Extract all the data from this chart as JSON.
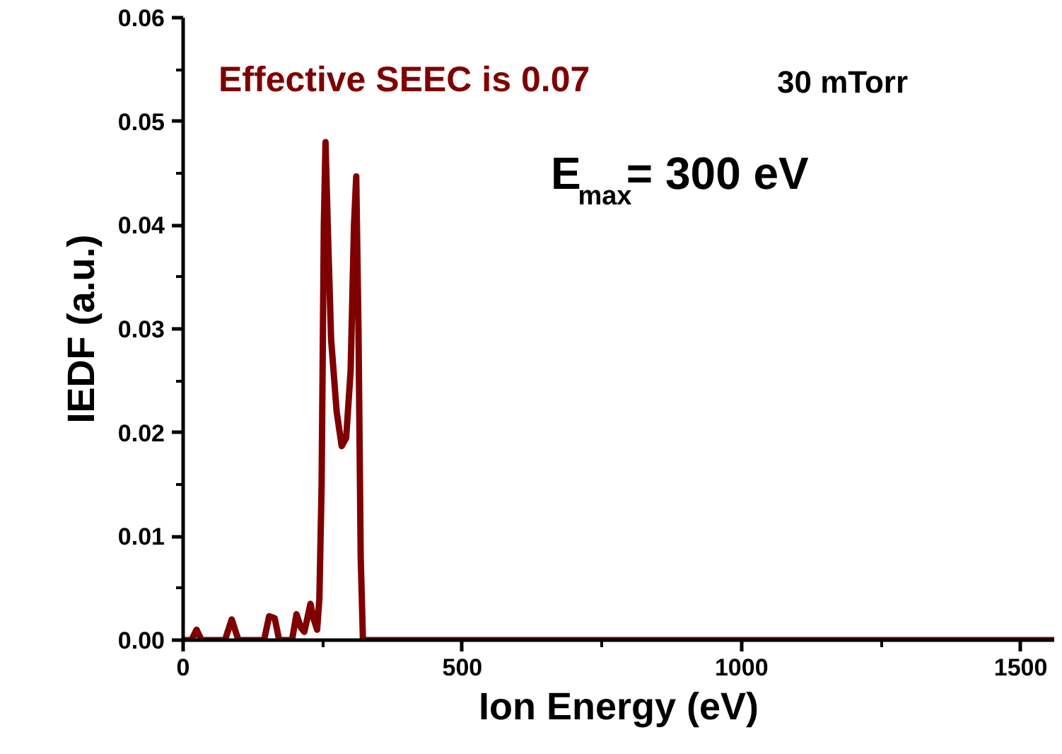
{
  "chart_data": {
    "type": "line",
    "xlabel": "Ion Energy (eV)",
    "ylabel": "IEDF (a.u.)",
    "xlim": [
      0,
      1560
    ],
    "ylim": [
      0,
      0.06
    ],
    "xticks": [
      0,
      500,
      1000,
      1500
    ],
    "yticks": [
      {
        "value": 0,
        "label": "0.00"
      },
      {
        "value": 0.01,
        "label": "0.01"
      },
      {
        "value": 0.02,
        "label": "0.02"
      },
      {
        "value": 0.03,
        "label": "0.03"
      },
      {
        "value": 0.04,
        "label": "0.04"
      },
      {
        "value": 0.05,
        "label": "0.05"
      },
      {
        "value": 0.06,
        "label": "0.06"
      }
    ],
    "grid": false,
    "marker": "none",
    "line_style": "solid",
    "annotations": [
      "Effective SEEC is 0.07",
      "30 mTorr",
      "E$_{max}$= 300 eV"
    ],
    "series": [
      {
        "color": "#7f0000",
        "x": [
          0,
          15,
          24,
          33,
          75,
          87,
          99,
          145,
          154,
          160,
          164,
          172,
          195,
          203,
          211,
          217,
          222,
          228,
          234,
          240,
          244,
          248,
          252,
          255,
          259,
          265,
          275,
          284,
          292,
          300,
          306,
          310,
          314,
          318,
          322,
          800,
          1560
        ],
        "values": [
          0,
          0,
          0.001,
          0,
          0,
          0.002,
          0,
          0,
          0.0023,
          0.0022,
          0.0021,
          0,
          0,
          0.0025,
          0.0012,
          0.0008,
          0.002,
          0.0035,
          0.002,
          0.001,
          0.004,
          0.015,
          0.04,
          0.048,
          0.04,
          0.029,
          0.022,
          0.0187,
          0.0195,
          0.026,
          0.04,
          0.0447,
          0.03,
          0.008,
          0,
          0,
          0
        ]
      }
    ]
  }
}
